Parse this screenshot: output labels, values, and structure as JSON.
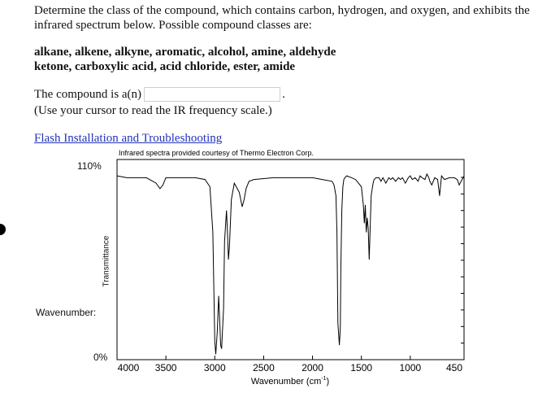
{
  "question": {
    "prompt": "Determine the class of the compound, which contains carbon, hydrogen, and oxygen, and exhibits the infrared spectrum below. Possible compound classes are:",
    "classes_line1": "alkane, alkene, alkyne, aromatic, alcohol, amine, aldehyde",
    "classes_line2": "ketone, carboxylic acid, acid chloride, ester, amide",
    "answer_label": "The compound is a(n)",
    "answer_value": "",
    "answer_period": ".",
    "hint": "(Use your cursor to read the IR frequency scale.)"
  },
  "link": {
    "label": "Flash Installation and Troubleshooting"
  },
  "spectrum": {
    "courtesy": "Infrared spectra provided courtesy of Thermo Electron Corp.",
    "y_top_label": "110%",
    "y_bottom_label": "0%",
    "y_axis_title": "Transmittance",
    "wavenumber_readout": "Wavenumber:",
    "x_axis_title": "Wavenumber (cm",
    "x_axis_superscript": "-1",
    "x_axis_close": ")",
    "x_tick_labels": [
      "4000",
      "3500",
      "3000",
      "2500",
      "2000",
      "1500",
      "1000",
      "450"
    ],
    "line_color": "#000000"
  },
  "chart_data": {
    "type": "line",
    "xlabel": "Wavenumber (cm-1)",
    "ylabel": "Transmittance",
    "xlim": [
      4000,
      450
    ],
    "ylim": [
      0,
      110
    ],
    "x_reversed": true,
    "x_ticks": [
      4000,
      3500,
      3000,
      2500,
      2000,
      1500,
      1000,
      450
    ],
    "series": [
      {
        "x": [
          4000,
          3900,
          3700,
          3600,
          3560,
          3530,
          3500,
          3400,
          3200,
          3100,
          3050,
          3020,
          3000,
          2990,
          2975,
          2960,
          2950,
          2940,
          2930,
          2910,
          2900,
          2880,
          2870,
          2860,
          2850,
          2830,
          2800,
          2750,
          2720,
          2700,
          2680,
          2650,
          2600,
          2400,
          2200,
          2000,
          1900,
          1800,
          1780,
          1760,
          1750,
          1740,
          1725,
          1715,
          1710,
          1700,
          1690,
          1680,
          1670,
          1650,
          1600,
          1560,
          1500,
          1480,
          1470,
          1460,
          1450,
          1440,
          1430,
          1420,
          1400,
          1380,
          1370,
          1350,
          1320,
          1300,
          1280,
          1250,
          1220,
          1200,
          1180,
          1150,
          1120,
          1100,
          1080,
          1050,
          1020,
          1000,
          980,
          950,
          920,
          900,
          880,
          850,
          830,
          810,
          800,
          780,
          750,
          720,
          700,
          680,
          650,
          600,
          550,
          520,
          500,
          450
        ],
        "y": [
          101,
          100,
          100,
          97,
          94,
          96,
          100,
          100,
          100,
          99,
          95,
          70,
          10,
          3,
          15,
          35,
          22,
          8,
          6,
          28,
          65,
          82,
          70,
          55,
          62,
          88,
          97,
          92,
          84,
          88,
          94,
          98,
          99,
          100,
          100,
          100,
          99,
          98,
          96,
          90,
          70,
          20,
          8,
          18,
          50,
          82,
          95,
          99,
          100,
          101,
          100,
          99,
          95,
          85,
          75,
          85,
          70,
          78,
          72,
          55,
          90,
          97,
          99,
          100,
          100,
          98,
          100,
          97,
          100,
          99,
          100,
          98,
          100,
          99,
          100,
          97,
          100,
          101,
          99,
          100,
          98,
          101,
          100,
          99,
          102,
          100,
          98,
          96,
          100,
          99,
          90,
          101,
          99,
          100,
          100,
          99,
          96,
          101
        ]
      }
    ]
  }
}
